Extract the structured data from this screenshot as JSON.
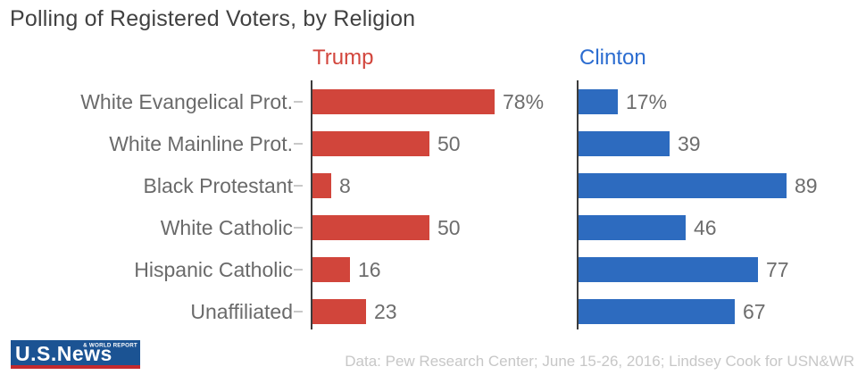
{
  "title": "Polling of Registered Voters, by Religion",
  "chart_data": {
    "type": "bar",
    "orientation": "horizontal",
    "title": "Polling of Registered Voters, by Religion",
    "categories": [
      "White Evangelical Prot.",
      "White Mainline Prot.",
      "Black Protestant",
      "White Catholic",
      "Hispanic Catholic",
      "Unaffiliated"
    ],
    "series": [
      {
        "name": "Trump",
        "color": "#d1453b",
        "header_color": "#d2453c",
        "values": [
          78,
          50,
          8,
          50,
          16,
          23
        ],
        "value_labels": [
          "78%",
          "50",
          "8",
          "50",
          "16",
          "23"
        ]
      },
      {
        "name": "Clinton",
        "color": "#2d6bbf",
        "header_color": "#2b6cd0",
        "values": [
          17,
          39,
          89,
          46,
          77,
          67
        ],
        "value_labels": [
          "17%",
          "39",
          "89",
          "46",
          "77",
          "67"
        ]
      }
    ],
    "xlim": [
      0,
      100
    ],
    "grid": false,
    "legend_position": "column-headers",
    "axis_color": "#3c3c3c",
    "tick_color": "#c8c8c8",
    "value_label_color": "#6d6d6d",
    "category_label_color": "#6a6a6a"
  },
  "footer": {
    "logo": {
      "main": "U.S.News",
      "sub": "& WORLD REPORT",
      "background": "#1b5393",
      "underline_color": "#c32a2e",
      "text_color": "#ffffff"
    },
    "source": "Data: Pew Research Center; June 15-26, 2016; Lindsey Cook for USN&WR"
  }
}
